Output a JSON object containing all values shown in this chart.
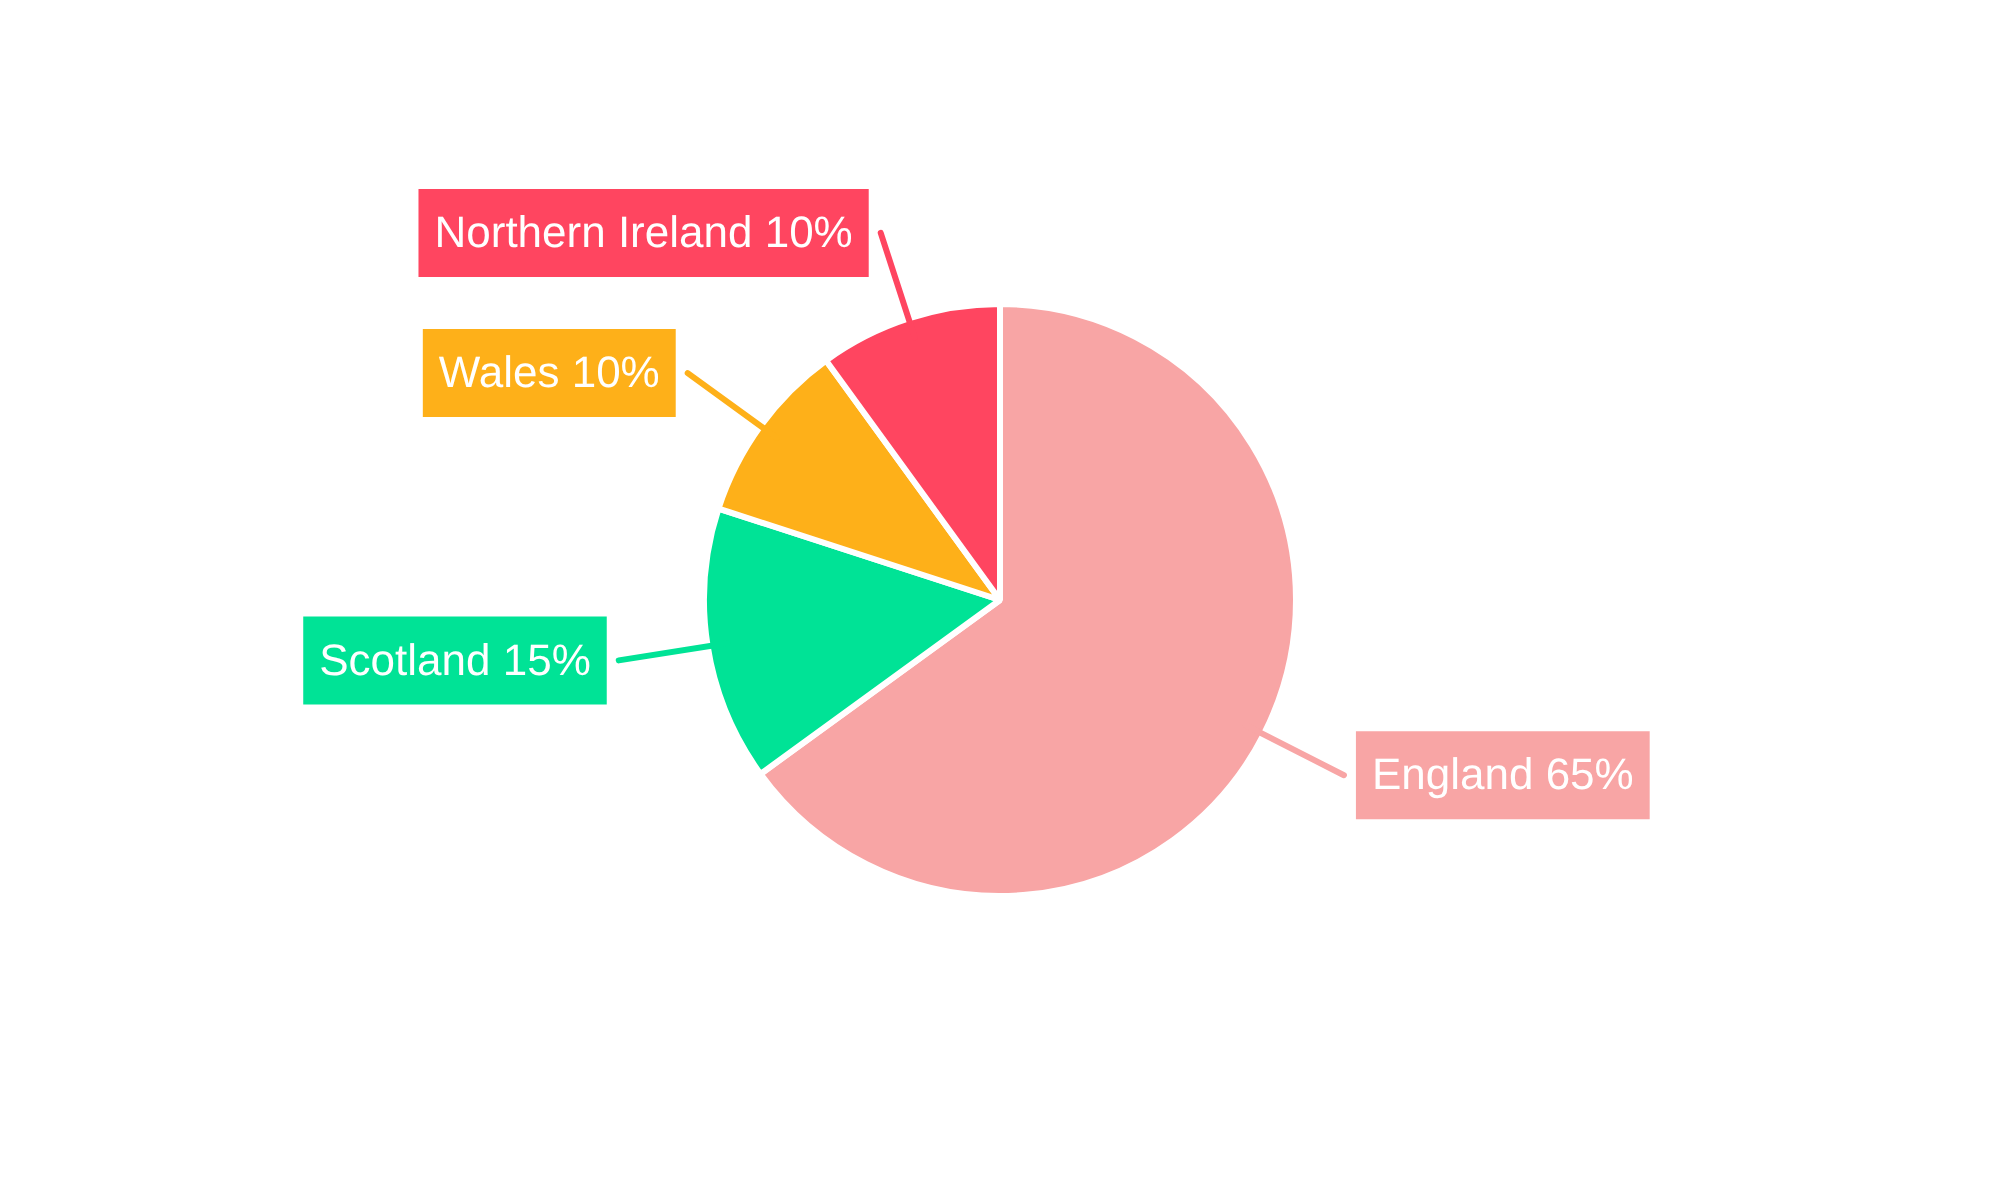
{
  "chart_data": {
    "type": "pie",
    "categories": [
      "England",
      "Scotland",
      "Wales",
      "Northern Ireland"
    ],
    "values": [
      65,
      15,
      10,
      10
    ],
    "colors": [
      "#f8a5a5",
      "#00e396",
      "#feb019",
      "#ff4560"
    ],
    "value_labels": [
      "65%",
      "15%",
      "10%",
      "10%"
    ],
    "legend": false
  }
}
